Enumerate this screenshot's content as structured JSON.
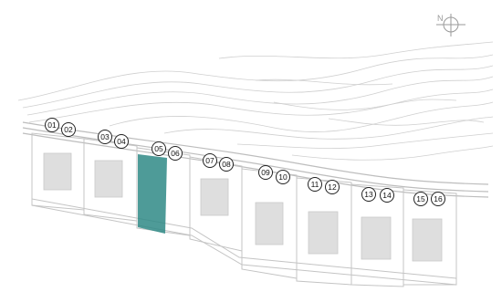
{
  "plan": {
    "highlight_color": "#2f8a86",
    "highlighted_units": [
      "05"
    ],
    "compass": {
      "label": "N",
      "icon": "north-arrow-icon"
    },
    "units": [
      "01",
      "02",
      "03",
      "04",
      "05",
      "06",
      "07",
      "08",
      "09",
      "10",
      "11",
      "12",
      "13",
      "14",
      "15",
      "16"
    ]
  }
}
